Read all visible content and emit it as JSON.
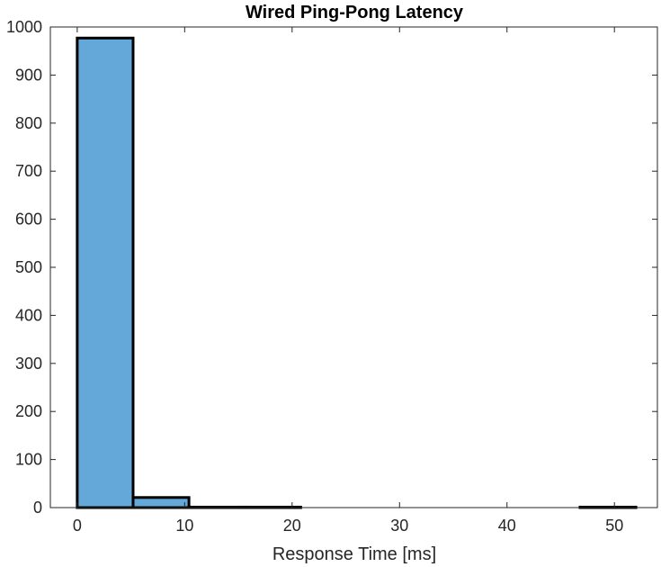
{
  "chart_data": {
    "type": "bar",
    "title": "Wired Ping-Pong Latency",
    "xlabel": "Response Time [ms]",
    "ylabel": "",
    "bin_edges": [
      0,
      5.2,
      10.4,
      15.6,
      20.8,
      26.0,
      31.2,
      36.4,
      41.6,
      46.8,
      52.0
    ],
    "values": [
      977,
      21,
      1,
      1,
      0,
      0,
      0,
      0,
      0,
      1
    ],
    "xlim": [
      -2.5,
      54
    ],
    "ylim": [
      0,
      1000
    ],
    "xticks": [
      0,
      10,
      20,
      30,
      40,
      50
    ],
    "yticks": [
      0,
      100,
      200,
      300,
      400,
      500,
      600,
      700,
      800,
      900,
      1000
    ],
    "grid": false,
    "colors": {
      "bar_fill": "#63a8d8",
      "bar_edge": "#000000",
      "axis": "#262626"
    }
  }
}
